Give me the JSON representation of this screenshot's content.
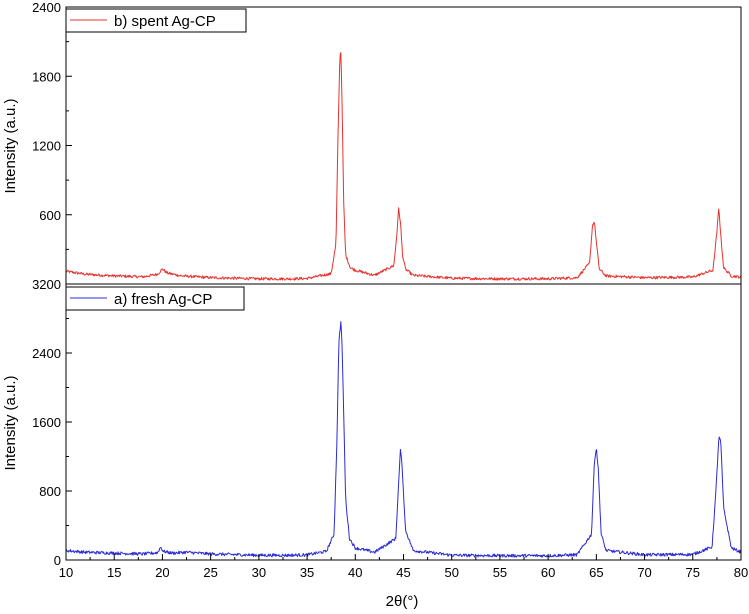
{
  "chart_data": [
    {
      "panel": "top",
      "type": "line",
      "ylabel": "Intensity (a.u.)",
      "xlim": [
        10,
        80
      ],
      "ylim": [
        0,
        2400
      ],
      "yticks": [
        600,
        1200,
        1800,
        2400
      ],
      "grid": false,
      "legend_position": "top-left",
      "series": [
        {
          "name": "b) spent Ag-CP",
          "color": "#e8322e",
          "baseline": 35,
          "noise": 12,
          "x": [
            10,
            12,
            15,
            18,
            19.5,
            20,
            20.5,
            22,
            25,
            30,
            33,
            35,
            37.5,
            38.0,
            38.2,
            38.4,
            38.5,
            38.6,
            38.8,
            39.0,
            39.5,
            40,
            42,
            44.0,
            44.3,
            44.5,
            44.7,
            44.9,
            45.2,
            46,
            50,
            55,
            60,
            63,
            64.3,
            64.6,
            64.8,
            65.0,
            65.3,
            66,
            70,
            75,
            77.1,
            77.5,
            77.7,
            77.9,
            78.2,
            79,
            80
          ],
          "y": [
            110,
            85,
            70,
            62,
            85,
            130,
            95,
            70,
            55,
            45,
            45,
            48,
            90,
            350,
            1250,
            1970,
            2010,
            1700,
            700,
            250,
            140,
            120,
            75,
            160,
            420,
            655,
            520,
            250,
            130,
            75,
            50,
            45,
            45,
            55,
            180,
            510,
            540,
            360,
            130,
            70,
            55,
            60,
            120,
            450,
            665,
            420,
            140,
            70,
            60
          ]
        }
      ]
    },
    {
      "panel": "bottom",
      "type": "line",
      "xlabel": "2θ(°)",
      "ylabel": "Intensity (a.u.)",
      "xlim": [
        10,
        80
      ],
      "ylim": [
        0,
        3200
      ],
      "xticks": [
        10,
        15,
        20,
        25,
        30,
        35,
        40,
        45,
        50,
        55,
        60,
        65,
        70,
        75,
        80
      ],
      "yticks": [
        0,
        800,
        1600,
        2400,
        3200
      ],
      "grid": false,
      "legend_position": "top-left",
      "series": [
        {
          "name": "a) fresh Ag-CP",
          "color": "#2b2bd6",
          "baseline": 50,
          "noise": 18,
          "x": [
            10,
            12,
            15,
            18,
            19.5,
            19.8,
            20.1,
            21,
            22.5,
            25,
            30,
            33,
            35,
            37.0,
            37.8,
            38.1,
            38.3,
            38.5,
            38.6,
            38.8,
            39.0,
            39.4,
            40,
            42,
            44.2,
            44.5,
            44.7,
            44.9,
            45.2,
            46,
            50,
            55,
            60,
            63,
            64.5,
            64.8,
            65.0,
            65.2,
            65.5,
            66,
            70,
            75,
            77.0,
            77.4,
            77.7,
            77.9,
            78.2,
            79,
            80
          ],
          "y": [
            110,
            90,
            80,
            70,
            85,
            150,
            100,
            80,
            90,
            70,
            55,
            55,
            60,
            100,
            300,
            1400,
            2550,
            2750,
            2600,
            1700,
            700,
            250,
            140,
            90,
            250,
            900,
            1310,
            1000,
            350,
            110,
            55,
            50,
            50,
            60,
            300,
            1150,
            1300,
            1050,
            300,
            110,
            60,
            65,
            150,
            800,
            1420,
            1380,
            600,
            140,
            90
          ]
        }
      ]
    }
  ]
}
